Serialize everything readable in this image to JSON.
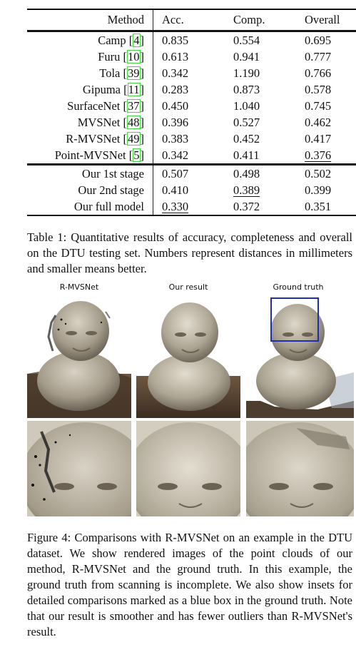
{
  "table": {
    "headers": [
      "Method",
      "Acc.",
      "Comp.",
      "Overall"
    ],
    "baselines": [
      {
        "name": "Camp",
        "cite": "4",
        "acc": "0.835",
        "comp": "0.554",
        "overall": "0.695"
      },
      {
        "name": "Furu",
        "cite": "10",
        "acc": "0.613",
        "comp": "0.941",
        "overall": "0.777"
      },
      {
        "name": "Tola",
        "cite": "39",
        "acc": "0.342",
        "comp": "1.190",
        "overall": "0.766"
      },
      {
        "name": "Gipuma",
        "cite": "11",
        "acc": "0.283",
        "comp": "0.873",
        "overall": "0.578"
      },
      {
        "name": "SurfaceNet",
        "cite": "37",
        "acc": "0.450",
        "comp": "1.040",
        "overall": "0.745"
      },
      {
        "name": "MVSNet",
        "cite": "48",
        "acc": "0.396",
        "comp": "0.527",
        "overall": "0.462"
      },
      {
        "name": "R-MVSNet",
        "cite": "49",
        "acc": "0.383",
        "comp": "0.452",
        "overall": "0.417"
      },
      {
        "name": "Point-MVSNet",
        "cite": "5",
        "acc": "0.342",
        "comp": "0.411",
        "overall": "0.376"
      }
    ],
    "ours": [
      {
        "name": "Our 1st stage",
        "acc": "0.507",
        "comp": "0.498",
        "overall": "0.502"
      },
      {
        "name": "Our 2nd stage",
        "acc": "0.410",
        "comp": "0.389",
        "overall": "0.399"
      },
      {
        "name": "Our full model",
        "acc": "0.330",
        "comp": "0.372",
        "overall": "0.351"
      }
    ]
  },
  "table_caption": "Table 1: Quantitative results of accuracy, completeness and overall on the DTU testing set. Numbers represent distances in millimeters and smaller means better.",
  "figure": {
    "column_labels": [
      "R-MVSNet",
      "Our result",
      "Ground truth"
    ],
    "inset_box_color": "#1f2fb0"
  },
  "figure_caption": "Figure 4: Comparisons with R-MVSNet on an example in the DTU dataset. We show rendered images of the point clouds of our method, R-MVSNet and the ground truth. In this example, the ground truth from scanning is incomplete. We also show insets for detailed comparisons marked as a blue box in the ground truth. Note that our result is smoother and has fewer outliers than R-MVSNet's result."
}
